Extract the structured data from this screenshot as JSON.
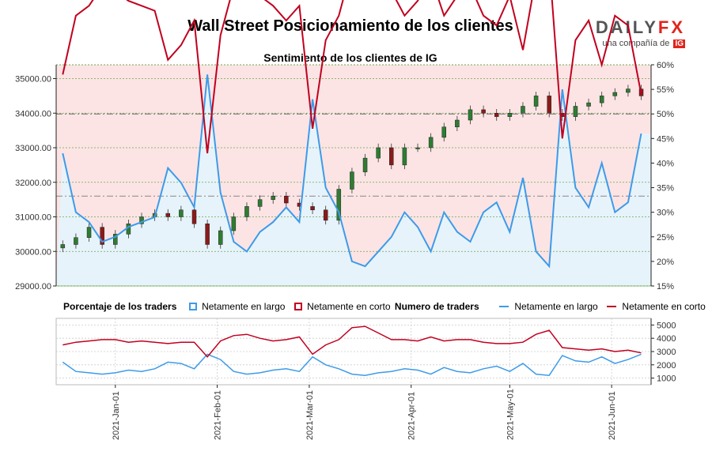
{
  "title": "Wall Street Posicionamiento de los clientes",
  "logo": {
    "word_main": "DAILY",
    "word_accent": "FX",
    "tagline": "una compañía de",
    "badge": "IG"
  },
  "subtitle": "Sentimiento de los clientes de IG",
  "legend": {
    "pct_heading": "Porcentaje de los traders",
    "pct_long": "Netamente en largo",
    "pct_short": "Netamente en corto",
    "num_heading": "Numero de traders",
    "num_long": "Netamente en largo",
    "num_short": "Netamente en corto"
  },
  "colors": {
    "long": "#3d9be9",
    "short": "#c1001f",
    "long_fill": "#e7f3fb",
    "short_fill": "#fce4e4",
    "candle_up": "#2e7d32",
    "candle_down": "#8b1a1a",
    "grid": "#6aa84f"
  },
  "chart_data": [
    {
      "type": "candlestick",
      "title": "Sentimiento de los clientes de IG",
      "y_left": {
        "ticks": [
          35000,
          34000,
          33000,
          32000,
          31000,
          30000,
          29000
        ],
        "tick_labels": [
          "35000.00",
          "34000.00",
          "33000.00",
          "32000.00",
          "31000.00",
          "30000.00",
          "29000.00"
        ],
        "ylim": [
          29000,
          35400
        ]
      },
      "y_right": {
        "ticks": [
          60,
          55,
          50,
          45,
          40,
          35,
          30,
          25,
          20,
          15
        ],
        "tick_labels": [
          "60%",
          "55%",
          "50%",
          "45%",
          "40%",
          "35%",
          "30%",
          "25%",
          "20%",
          "15%"
        ],
        "ylim": [
          15,
          60
        ]
      },
      "grid": true,
      "x_dates": [
        "2020-12-16",
        "2020-12-20",
        "2020-12-24",
        "2020-12-28",
        "2021-01-01",
        "2021-01-05",
        "2021-01-09",
        "2021-01-13",
        "2021-01-17",
        "2021-01-21",
        "2021-01-25",
        "2021-01-29",
        "2021-02-02",
        "2021-02-06",
        "2021-02-10",
        "2021-02-14",
        "2021-02-18",
        "2021-02-22",
        "2021-02-26",
        "2021-03-02",
        "2021-03-06",
        "2021-03-10",
        "2021-03-14",
        "2021-03-18",
        "2021-03-22",
        "2021-03-26",
        "2021-03-30",
        "2021-04-03",
        "2021-04-07",
        "2021-04-11",
        "2021-04-15",
        "2021-04-19",
        "2021-04-23",
        "2021-04-27",
        "2021-05-01",
        "2021-05-05",
        "2021-05-09",
        "2021-05-13",
        "2021-05-17",
        "2021-05-21",
        "2021-05-25",
        "2021-05-29",
        "2021-06-02",
        "2021-06-06",
        "2021-06-10"
      ],
      "price_close": [
        30200,
        30400,
        30700,
        30200,
        30500,
        30800,
        31000,
        31100,
        31000,
        31200,
        30800,
        30200,
        30600,
        31000,
        31300,
        31500,
        31600,
        31400,
        31300,
        31200,
        30900,
        31800,
        32300,
        32700,
        33000,
        32500,
        33000,
        33000,
        33300,
        33600,
        33800,
        34100,
        34000,
        33900,
        34000,
        34200,
        34500,
        34000,
        33900,
        34200,
        34300,
        34500,
        34600,
        34700,
        34500
      ],
      "pct_long": [
        42,
        30,
        28,
        24,
        25,
        27,
        28,
        29,
        39,
        36,
        31,
        58,
        34,
        24,
        22,
        26,
        28,
        31,
        28,
        53,
        35,
        30,
        20,
        19,
        22,
        25,
        30,
        27,
        22,
        30,
        26,
        24,
        30,
        32,
        26,
        37,
        22,
        19,
        55,
        35,
        31,
        40,
        30,
        32,
        46
      ],
      "pct_short": [
        58,
        70,
        72,
        76,
        75,
        73,
        72,
        71,
        61,
        64,
        69,
        42,
        66,
        76,
        78,
        74,
        72,
        69,
        72,
        47,
        65,
        70,
        80,
        81,
        78,
        75,
        70,
        73,
        78,
        70,
        74,
        76,
        70,
        68,
        74,
        63,
        78,
        81,
        45,
        65,
        69,
        60,
        70,
        68,
        54
      ]
    },
    {
      "type": "line",
      "title": "Numero de traders",
      "y_right": {
        "ticks": [
          5000,
          4000,
          3000,
          2000,
          1000
        ],
        "tick_labels": [
          "5000",
          "4000",
          "3000",
          "2000",
          "1000"
        ],
        "ylim": [
          500,
          5500
        ]
      },
      "x_tick_labels": [
        "2021-Jan-01",
        "2021-Feb-01",
        "2021-Mar-01",
        "2021-Apr-01",
        "2021-May-01",
        "2021-Jun-01"
      ],
      "series": [
        {
          "name": "Netamente en largo",
          "values": [
            2200,
            1500,
            1400,
            1300,
            1400,
            1600,
            1500,
            1700,
            2200,
            2100,
            1700,
            2800,
            2400,
            1500,
            1300,
            1400,
            1600,
            1700,
            1500,
            2600,
            2000,
            1700,
            1300,
            1200,
            1400,
            1500,
            1700,
            1600,
            1300,
            1800,
            1500,
            1400,
            1700,
            1900,
            1500,
            2100,
            1300,
            1200,
            2700,
            2300,
            2200,
            2600,
            2100,
            2400,
            2800
          ]
        },
        {
          "name": "Netamente en corto",
          "values": [
            3500,
            3700,
            3800,
            3900,
            3900,
            3700,
            3800,
            3700,
            3600,
            3700,
            3700,
            2600,
            3800,
            4200,
            4300,
            4000,
            3800,
            3900,
            4100,
            2800,
            3500,
            3900,
            4800,
            4900,
            4400,
            3900,
            3900,
            3800,
            4100,
            3800,
            3900,
            3900,
            3700,
            3600,
            3600,
            3700,
            4300,
            4600,
            3300,
            3200,
            3100,
            3200,
            3000,
            3100,
            2900
          ]
        }
      ]
    }
  ]
}
